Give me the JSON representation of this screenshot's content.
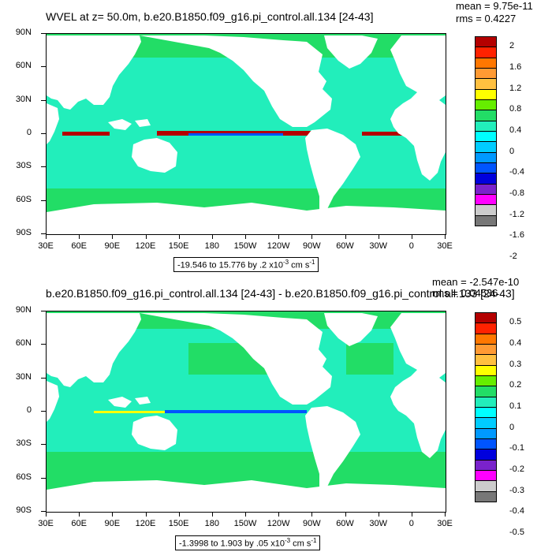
{
  "panels": [
    {
      "title": "WVEL at z=  50.0m, b.e20.B1850.f09_g16.pi_control.all.134 [24-43]",
      "mean": "mean = 9.75e-11",
      "rms": "rms = 0.4227",
      "range_text": "-19.546 to 15.776 by .2 x10",
      "range_exp": "-3",
      "range_unit": " cm s",
      "range_unit_exp": "-1",
      "legend_labels": [
        "2",
        "1.6",
        "1.2",
        "0.8",
        "0.4",
        "0",
        "-0.4",
        "-0.8",
        "-1.2",
        "-1.6",
        "-2"
      ],
      "legend_colors": [
        "#b40000",
        "#ff2200",
        "#ff7700",
        "#ff9a33",
        "#ffc040",
        "#ffff00",
        "#66ee00",
        "#22dd66",
        "#22eebb",
        "#00ffff",
        "#00ccff",
        "#0099ff",
        "#0055ff",
        "#0000dd",
        "#7a22cc",
        "#ff00ff",
        "#cccccc",
        "#777777"
      ]
    },
    {
      "title": "b.e20.B1850.f09_g16.pi_control.all.134 [24-43] - b.e20.B1850.f09_g16.pi_control.all.133 [24-43]",
      "mean": "mean = -2.547e-10",
      "rms": "rms = 0.04536",
      "range_text": "-1.3998 to 1.903 by .05 x10",
      "range_exp": "-3",
      "range_unit": " cm s",
      "range_unit_exp": "-1",
      "legend_labels": [
        "0.5",
        "0.4",
        "0.3",
        "0.2",
        "0.1",
        "0",
        "-0.1",
        "-0.2",
        "-0.3",
        "-0.4",
        "-0.5"
      ],
      "legend_colors": [
        "#b40000",
        "#ff2200",
        "#ff7700",
        "#ff9a33",
        "#ffc040",
        "#ffff00",
        "#66ee00",
        "#22dd66",
        "#22eebb",
        "#00ffff",
        "#00ccff",
        "#0099ff",
        "#0055ff",
        "#0000dd",
        "#7a22cc",
        "#ff00ff",
        "#cccccc",
        "#777777"
      ]
    }
  ],
  "axes": {
    "y_labels": [
      "90N",
      "60N",
      "30N",
      "0",
      "30S",
      "60S",
      "90S"
    ],
    "x_labels": [
      "30E",
      "60E",
      "90E",
      "120E",
      "150E",
      "180",
      "150W",
      "120W",
      "90W",
      "60W",
      "30W",
      "0",
      "30E"
    ]
  },
  "colors": {
    "ocean_main": "#22eebb",
    "ocean_alt": "#22dd66",
    "land": "#ffffff",
    "equator_red": "#b40000",
    "equator_blue": "#0055ff"
  }
}
